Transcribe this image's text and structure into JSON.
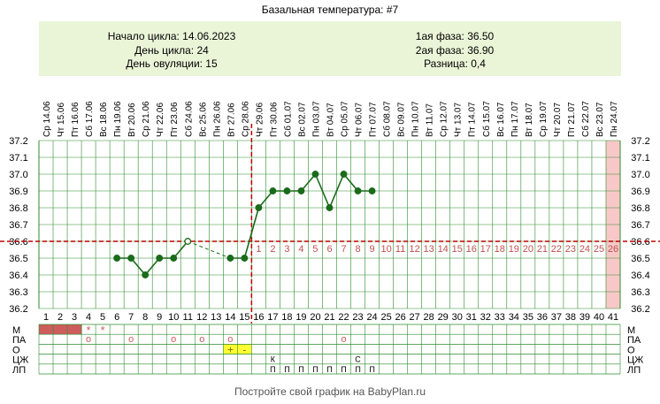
{
  "title": "Базальная температура: #7",
  "info": {
    "cycle_start": "Начало цикла: 14.06.2023",
    "cycle_day": "День цикла: 24",
    "ovulation_day": "День овуляции: 15",
    "phase1": "1ая фаза: 36.50",
    "phase2": "2ая фаза: 36.90",
    "difference": "Разница: 0,4"
  },
  "footer": "Постройте свой график на BabyPlan.ru",
  "colors": {
    "line": "#1a6b1a",
    "grid": "#2e8b2e",
    "coverline": "#c00000",
    "future_labels": "#c05050",
    "panel": "#eaf5d8",
    "menstruation": "#cd5c5c",
    "today_band": "#f8c8c8",
    "ovulation_marker": "#ffff33"
  },
  "chart_data": {
    "type": "line",
    "title": "Базальная температура: #7",
    "ylim": [
      36.2,
      37.2
    ],
    "y_ticks": [
      "36.2",
      "36.3",
      "36.4",
      "36.5",
      "36.6",
      "36.7",
      "36.8",
      "36.9",
      "37.0",
      "37.1",
      "37.2"
    ],
    "grid": true,
    "days": [
      "1",
      "2",
      "3",
      "4",
      "5",
      "6",
      "7",
      "8",
      "9",
      "10",
      "11",
      "12",
      "13",
      "14",
      "15",
      "16",
      "17",
      "18",
      "19",
      "20",
      "21",
      "22",
      "23",
      "24",
      "25",
      "26",
      "27",
      "28",
      "29",
      "30",
      "31",
      "32",
      "33",
      "34",
      "35",
      "36",
      "37",
      "38",
      "39",
      "40",
      "41"
    ],
    "weekdays": [
      "Ср",
      "Чт",
      "Пт",
      "Сб",
      "Вс",
      "Пн",
      "Вт",
      "Ср",
      "Чт",
      "Пт",
      "Сб",
      "Вс",
      "Пн",
      "Вт",
      "Ср",
      "Чт",
      "Пт",
      "Сб",
      "Вс",
      "Пн",
      "Вт",
      "Ср",
      "Чт",
      "Пт",
      "Сб",
      "Вс",
      "Пн",
      "Вт",
      "Ср",
      "Чт",
      "Пт",
      "Сб",
      "Вс",
      "Пн",
      "Вт",
      "Ср",
      "Чт",
      "Пт",
      "Сб",
      "Вс",
      "Пн"
    ],
    "dates": [
      "14.06",
      "15.06",
      "16.06",
      "17.06",
      "18.06",
      "19.06",
      "20.06",
      "21.06",
      "22.06",
      "23.06",
      "24.06",
      "25.06",
      "26.06",
      "27.06",
      "28.06",
      "29.06",
      "30.06",
      "01.07",
      "02.07",
      "03.07",
      "04.07",
      "05.07",
      "06.07",
      "07.07",
      "08.07",
      "09.07",
      "10.07",
      "11.07",
      "12.07",
      "13.07",
      "14.07",
      "15.07",
      "16.07",
      "17.07",
      "18.07",
      "19.07",
      "20.07",
      "21.07",
      "22.07",
      "23.07",
      "24.07"
    ],
    "temperatures": [
      null,
      null,
      null,
      null,
      null,
      36.5,
      36.5,
      36.4,
      36.5,
      36.5,
      36.6,
      null,
      null,
      36.5,
      36.5,
      36.8,
      36.9,
      36.9,
      36.9,
      37.0,
      36.8,
      37.0,
      36.9,
      36.9,
      null,
      null,
      null,
      null,
      null,
      null,
      null,
      null,
      null,
      null,
      null,
      null,
      null,
      null,
      null,
      null,
      null
    ],
    "hollow_points": [
      11
    ],
    "dashed_gap": [
      11,
      14
    ],
    "coverline": 36.6,
    "ovulation_day": 15,
    "luteal_day_labels": [
      "1",
      "2",
      "3",
      "4",
      "5",
      "6",
      "7",
      "8",
      "9",
      "10",
      "11",
      "12",
      "13",
      "14",
      "15",
      "16",
      "17",
      "18",
      "19",
      "20",
      "21",
      "22",
      "23",
      "24",
      "25",
      "26"
    ],
    "luteal_start_day": 16,
    "highlight_day": 41,
    "tracks": {
      "labels": [
        "М",
        "ПА",
        "О",
        "ЦЖ",
        "ЛП"
      ],
      "menstruation_days": [
        1,
        2,
        3
      ],
      "menstruation_spotting": [
        4,
        5
      ],
      "spotting_symbol": "*",
      "pa_days": [
        4,
        7,
        10,
        12,
        14,
        22
      ],
      "pa_symbol": "о",
      "ovulation_test": [
        {
          "day": 14,
          "symbol": "+"
        },
        {
          "day": 15,
          "symbol": "-"
        }
      ],
      "cervical": [
        {
          "day": 17,
          "symbol": "К"
        },
        {
          "day": 23,
          "symbol": "С"
        }
      ],
      "medication_days": [
        17,
        18,
        19,
        20,
        21,
        22,
        23,
        24
      ],
      "medication_symbol": "П"
    }
  }
}
